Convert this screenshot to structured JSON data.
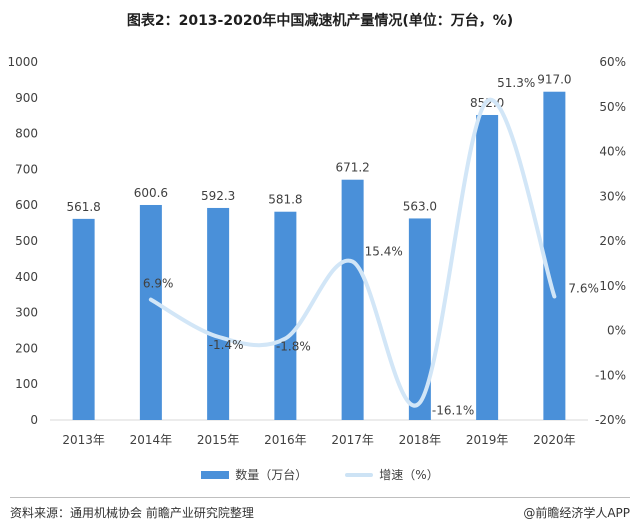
{
  "title": "图表2：2013-2020年中国减速机产量情况(单位：万台，%)",
  "footer": {
    "source": "资料来源：通用机械协会 前瞻产业研究院整理",
    "credit": "@前瞻经济学人APP"
  },
  "colors": {
    "bar": "#4a90d9",
    "line": "#d2e6f7",
    "grid": "#d9d9d9"
  },
  "chart_data": {
    "type": "bar",
    "categories": [
      "2013年",
      "2014年",
      "2015年",
      "2016年",
      "2017年",
      "2018年",
      "2019年",
      "2020年"
    ],
    "series": [
      {
        "name": "数量（万台）",
        "type": "bar",
        "axis": "left",
        "values": [
          561.8,
          600.6,
          592.3,
          581.8,
          671.2,
          563.0,
          852.0,
          917.0
        ],
        "labels": [
          "561.8",
          "600.6",
          "592.3",
          "581.8",
          "671.2",
          "563.0",
          "852.0",
          "917.0"
        ]
      },
      {
        "name": "增速（%）",
        "type": "line",
        "axis": "right",
        "smooth": true,
        "values": [
          null,
          6.9,
          -1.4,
          -1.8,
          15.4,
          -16.1,
          51.3,
          7.6
        ],
        "labels": [
          "",
          "6.9%",
          "-1.4%",
          "-1.8%",
          "15.4%",
          "-16.1%",
          "51.3%",
          "7.6%"
        ]
      }
    ],
    "y_left": {
      "ylim": [
        0,
        1000
      ],
      "ticks": [
        "0",
        "100",
        "200",
        "300",
        "400",
        "500",
        "600",
        "700",
        "800",
        "900",
        "1000"
      ]
    },
    "y_right": {
      "ylim": [
        -20,
        60
      ],
      "ticks": [
        "-20%",
        "-10%",
        "0%",
        "10%",
        "20%",
        "30%",
        "40%",
        "50%",
        "60%"
      ]
    },
    "grid": false,
    "legend": "bottom"
  }
}
